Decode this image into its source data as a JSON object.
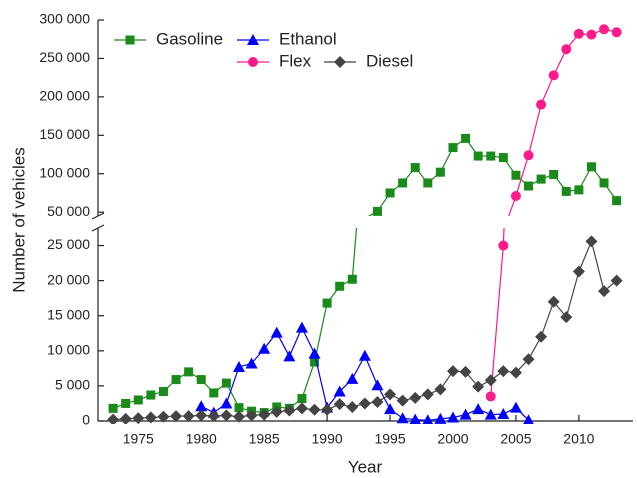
{
  "chart_data": {
    "type": "line",
    "y_label": "Number of vehicles",
    "x_label": "Year",
    "x": [
      1973,
      1974,
      1975,
      1976,
      1977,
      1978,
      1979,
      1980,
      1981,
      1982,
      1983,
      1984,
      1985,
      1986,
      1987,
      1988,
      1989,
      1990,
      1991,
      1992,
      1993,
      1994,
      1995,
      1996,
      1997,
      1998,
      1999,
      2000,
      2001,
      2002,
      2003,
      2004,
      2005,
      2006,
      2007,
      2008,
      2009,
      2010,
      2011,
      2012,
      2013
    ],
    "xlim": [
      1971.8,
      2014.3
    ],
    "xticks": [
      1975,
      1980,
      1985,
      1990,
      1995,
      2000,
      2005,
      2010
    ],
    "ylim_lower": [
      0,
      27500
    ],
    "yticks_lower": [
      0,
      {
        "value": 5000,
        "label": "5 000"
      },
      {
        "value": 10000,
        "label": "10 000"
      },
      {
        "value": 15000,
        "label": "15 000"
      },
      {
        "value": 20000,
        "label": "20 000"
      },
      {
        "value": 25000,
        "label": "25 000"
      }
    ],
    "ylim_upper": [
      45000,
      300000
    ],
    "yticks_upper": [
      {
        "value": 50000,
        "label": "50 000"
      },
      {
        "value": 100000,
        "label": "100 000"
      },
      {
        "value": 150000,
        "label": "150 000"
      },
      {
        "value": 200000,
        "label": "200 000"
      },
      {
        "value": 250000,
        "label": "250 000"
      },
      {
        "value": 300000,
        "label": "300 000"
      }
    ],
    "series": [
      {
        "name": "Gasoline",
        "color": "#1a8a1a",
        "marker": "square",
        "values": [
          1800,
          2500,
          3000,
          3700,
          4200,
          5900,
          7000,
          5900,
          4000,
          5400,
          1900,
          1400,
          1200,
          2000,
          1800,
          3200,
          8400,
          16800,
          19200,
          20200,
          42000,
          51000,
          75000,
          88000,
          108000,
          88000,
          102000,
          134000,
          146000,
          123000,
          123000,
          121000,
          98000,
          84000,
          93000,
          99000,
          77000,
          79000,
          109000,
          88000,
          65000
        ]
      },
      {
        "name": "Ethanol",
        "color": "#0000ff",
        "marker": "triangle",
        "values": [
          null,
          null,
          null,
          null,
          null,
          null,
          null,
          2100,
          1200,
          2500,
          7700,
          8200,
          10300,
          12600,
          9200,
          13300,
          9600,
          1900,
          4200,
          6000,
          9300,
          5100,
          1700,
          400,
          200,
          100,
          300,
          500,
          900,
          1700,
          900,
          1000,
          1900,
          100,
          null,
          null,
          null,
          null,
          null,
          null,
          null
        ]
      },
      {
        "name": "Flex",
        "color": "#ff1a8c",
        "marker": "circle",
        "values": [
          null,
          null,
          null,
          null,
          null,
          null,
          null,
          null,
          null,
          null,
          null,
          null,
          null,
          null,
          null,
          null,
          null,
          null,
          null,
          null,
          null,
          null,
          null,
          null,
          null,
          null,
          null,
          null,
          null,
          null,
          3500,
          25000,
          71000,
          124000,
          190000,
          228000,
          262000,
          282000,
          281000,
          288000,
          284000
        ]
      },
      {
        "name": "Diesel",
        "color": "#444444",
        "marker": "diamond",
        "values": [
          200,
          300,
          400,
          500,
          600,
          700,
          700,
          800,
          700,
          800,
          600,
          800,
          900,
          1300,
          1500,
          1800,
          1600,
          1600,
          2400,
          2000,
          2500,
          2700,
          3800,
          2900,
          3300,
          3800,
          4500,
          7100,
          7000,
          4900,
          5800,
          7100,
          6900,
          8800,
          12000,
          17000,
          14800,
          21300,
          25600,
          18500,
          20000
        ]
      }
    ]
  }
}
